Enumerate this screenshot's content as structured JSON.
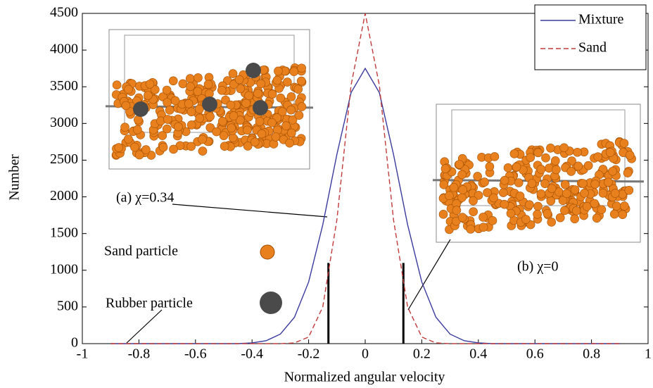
{
  "chart_data": {
    "type": "line",
    "x_label": "Normalized angular velocity",
    "y_label": "Number",
    "x": [
      -0.9,
      -0.5,
      -0.45,
      -0.4,
      -0.35,
      -0.3,
      -0.25,
      -0.2,
      -0.15,
      -0.1,
      -0.05,
      0,
      0.05,
      0.1,
      0.15,
      0.2,
      0.25,
      0.3,
      0.35,
      0.4,
      0.45,
      0.5,
      0.9
    ],
    "series": [
      {
        "name": "Mixture",
        "color": "#3a3a9e",
        "dash": false,
        "values": [
          0,
          0,
          0,
          10,
          40,
          130,
          360,
          840,
          1620,
          2580,
          3420,
          3750,
          3420,
          2580,
          1620,
          840,
          360,
          130,
          40,
          10,
          0,
          0,
          0
        ]
      },
      {
        "name": "Sand",
        "color": "#c03a3a",
        "dash": true,
        "values": [
          0,
          0,
          0,
          0,
          0,
          0,
          10,
          90,
          500,
          1690,
          3520,
          4500,
          3520,
          1690,
          500,
          90,
          10,
          0,
          0,
          0,
          0,
          0,
          0
        ]
      }
    ],
    "vlines": [
      {
        "x": -0.13,
        "y": 1100
      },
      {
        "x": 0.135,
        "y": 1100
      }
    ],
    "xlim": [
      -1,
      1
    ],
    "xticks": [
      -1,
      -0.8,
      -0.6,
      -0.4,
      -0.2,
      0,
      0.2,
      0.4,
      0.6,
      0.8,
      1
    ],
    "ylim": [
      0,
      4500
    ],
    "yticks": [
      0,
      500,
      1000,
      1500,
      2000,
      2500,
      3000,
      3500,
      4000,
      4500
    ],
    "grid": false,
    "legend": "upper right",
    "annotations": [
      "(a) χ=0.34",
      "(b) χ=0",
      "Sand particle",
      "Rubber particle"
    ]
  }
}
